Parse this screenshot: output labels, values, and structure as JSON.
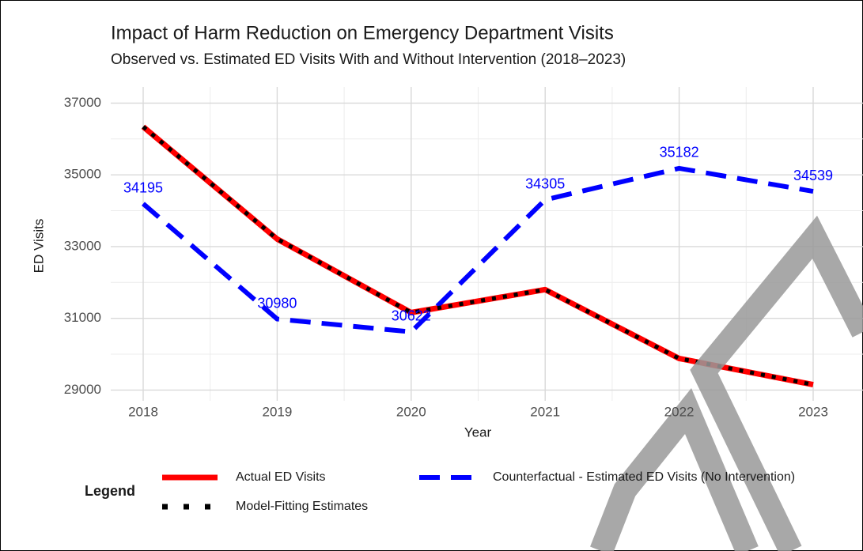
{
  "chart_data": {
    "type": "line",
    "title": "Impact of Harm Reduction on Emergency Department Visits",
    "subtitle": "Observed vs. Estimated ED Visits With and Without Intervention (2018–2023)",
    "x_label": "Year",
    "y_label": "ED Visits",
    "x": [
      2018,
      2019,
      2020,
      2021,
      2022,
      2023
    ],
    "xlim": [
      2018,
      2023
    ],
    "xticks": [
      2018,
      2019,
      2020,
      2021,
      2022,
      2023
    ],
    "ylim": [
      28700,
      37450
    ],
    "yticks": [
      29000,
      31000,
      33000,
      35000,
      37000
    ],
    "grid": true,
    "legend_title": "Legend",
    "legend_position": "bottom",
    "series": [
      {
        "name": "Actual ED Visits",
        "color": "#ff0000",
        "style": "solid",
        "values": [
          36340,
          33210,
          31160,
          31800,
          29880,
          29150
        ]
      },
      {
        "name": "Counterfactual - Estimated ED Visits (No Intervention)",
        "color": "#0000ff",
        "style": "dashed",
        "values": [
          34195,
          30980,
          30622,
          34305,
          35182,
          34539
        ],
        "data_labels": true
      },
      {
        "name": "Model-Fitting Estimates",
        "color": "#000000",
        "style": "dotted",
        "values": [
          36340,
          33210,
          31160,
          31800,
          29880,
          29150
        ]
      }
    ]
  }
}
